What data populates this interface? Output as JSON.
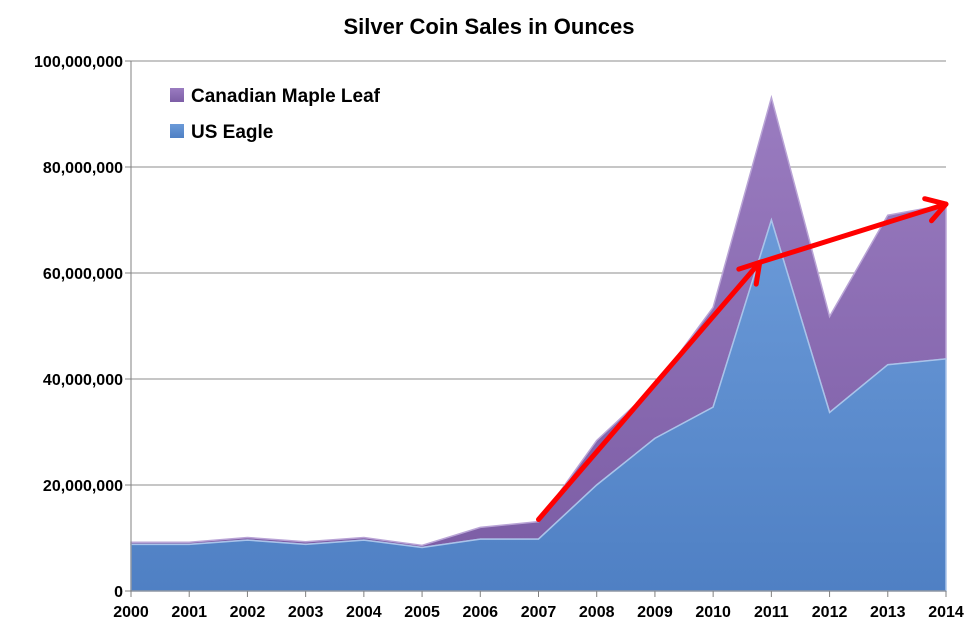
{
  "chart_data": {
    "type": "area",
    "stacked": true,
    "title": "Silver Coin Sales in Ounces",
    "xlabel": "",
    "ylabel": "",
    "categories": [
      "2000",
      "2001",
      "2002",
      "2003",
      "2004",
      "2005",
      "2006",
      "2007",
      "2008",
      "2009",
      "2010",
      "2011",
      "2012",
      "2013",
      "2014"
    ],
    "series": [
      {
        "name": "US Eagle",
        "color": "#5b8bcf",
        "values": [
          8800000,
          8800000,
          9600000,
          8800000,
          9600000,
          8200000,
          9800000,
          9800000,
          20000000,
          28800000,
          34700000,
          70000000,
          33700000,
          42700000,
          43800000
        ]
      },
      {
        "name": "Canadian Maple Leaf",
        "color": "#8b6bb0",
        "values": [
          400000,
          400000,
          500000,
          500000,
          500000,
          400000,
          2200000,
          3300000,
          8400000,
          9800000,
          18800000,
          23100000,
          18100000,
          28200000,
          29100000
        ]
      }
    ],
    "ylim": [
      0,
      100000000
    ],
    "yticks": [
      0,
      20000000,
      40000000,
      60000000,
      80000000,
      100000000
    ],
    "ytick_labels": [
      "0",
      "20,000,000",
      "40,000,000",
      "60,000,000",
      "80,000,000",
      "100,000,000"
    ],
    "grid": true,
    "legend": {
      "position": "top-left",
      "entries": [
        "Canadian Maple Leaf",
        "US Eagle"
      ]
    },
    "annotations": [
      {
        "type": "arrow",
        "color": "#ff0000",
        "from": {
          "x": "2007",
          "y": 13500000
        },
        "to": {
          "x": "2010.8",
          "y": 62000000
        }
      },
      {
        "type": "arrow",
        "color": "#ff0000",
        "from": {
          "x": "2010.8",
          "y": 62000000
        },
        "to": {
          "x": "2014",
          "y": 73000000
        }
      }
    ]
  }
}
